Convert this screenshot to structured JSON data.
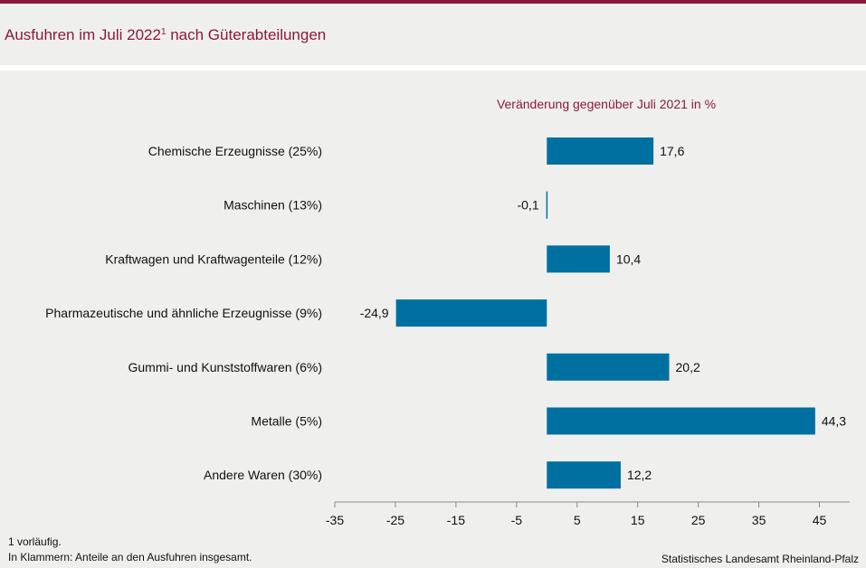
{
  "colors": {
    "accent": "#8b1a3a",
    "bar": "#0070a0",
    "text": "#111111",
    "axis": "#888888"
  },
  "header": {
    "title": "Ausfuhren im Juli 2022",
    "title_sup": "1",
    "title_suffix": " nach Güterabteilungen"
  },
  "chart_data": {
    "type": "bar",
    "orientation": "horizontal",
    "subtitle": "Veränderung gegenüber Juli 2021 in %",
    "categories": [
      "Chemische Erzeugnisse (25%)",
      "Maschinen (13%)",
      "Kraftwagen und Kraftwagenteile (12%)",
      "Pharmazeutische und ähnliche Erzeugnisse (9%)",
      "Gummi- und Kunststoffwaren (6%)",
      "Metalle (5%)",
      "Andere Waren (30%)"
    ],
    "values": [
      17.6,
      -0.1,
      10.4,
      -24.9,
      20.2,
      44.3,
      12.2
    ],
    "value_labels": [
      "17,6",
      "-0,1",
      "10,4",
      "-24,9",
      "20,2",
      "44,3",
      "12,2"
    ],
    "xlim": [
      -35,
      50
    ],
    "ticks": [
      -35,
      -25,
      -15,
      -5,
      5,
      15,
      25,
      35,
      45
    ],
    "grid": false
  },
  "footer": {
    "note1": "1 vorläufig.",
    "note2": "In Klammern: Anteile an den Ausfuhren insgesamt.",
    "source": "Statistisches Landesamt Rheinland-Pfalz"
  }
}
